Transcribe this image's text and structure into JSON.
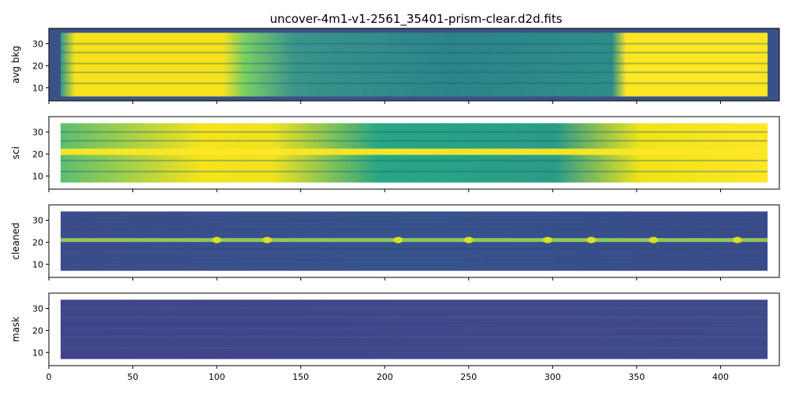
{
  "figure": {
    "title": "uncover-4m1-v1-2561_35401-prism-clear.d2d.fits"
  },
  "chart_data": {
    "type": "heatmap",
    "colormap": "viridis",
    "shared_x": true,
    "xlim": [
      0,
      435
    ],
    "xticks": [
      0,
      50,
      100,
      150,
      200,
      250,
      300,
      350,
      400
    ],
    "ylim": [
      4,
      37
    ],
    "yticks": [
      10,
      20,
      30
    ],
    "x_extent": [
      7,
      428
    ],
    "panels": [
      {
        "ylabel": "avg bkg",
        "y_extent": [
          6,
          35
        ]
      },
      {
        "ylabel": "sci",
        "y_extent": [
          7,
          34
        ]
      },
      {
        "ylabel": "cleaned",
        "y_extent": [
          7,
          34
        ]
      },
      {
        "ylabel": "mask",
        "y_extent": [
          7,
          34
        ]
      }
    ]
  }
}
